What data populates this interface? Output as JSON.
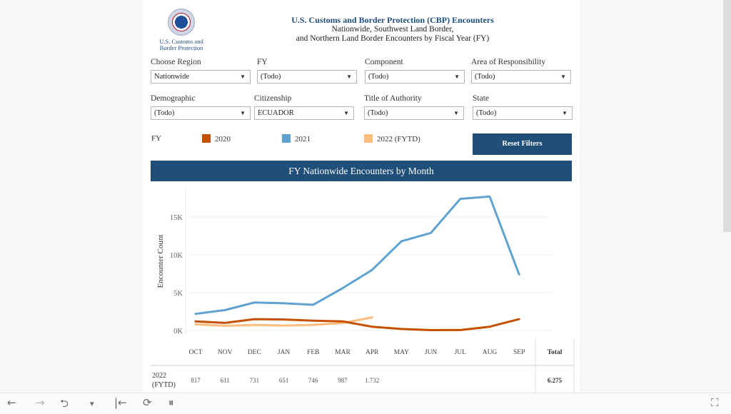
{
  "header": {
    "logo_text_line1": "U.S. Customs and",
    "logo_text_line2": "Border Protection",
    "title": "U.S. Customs and Border Protection (CBP) Encounters",
    "subtitle1": "Nationwide, Southwest Land Border,",
    "subtitle2": "and Northern Land Border Encounters by Fiscal Year (FY)"
  },
  "filters": [
    {
      "label": "Choose Region",
      "value": "Nationwide"
    },
    {
      "label": "FY",
      "value": "(Todo)"
    },
    {
      "label": "Component",
      "value": "(Todo)"
    },
    {
      "label": "Area of Responsibility",
      "value": "(Todo)"
    },
    {
      "label": "Demographic",
      "value": "(Todo)"
    },
    {
      "label": "Citizenship",
      "value": "ECUADOR"
    },
    {
      "label": "Title of Authority",
      "value": "(Todo)"
    },
    {
      "label": "State",
      "value": "(Todo)"
    }
  ],
  "legend": {
    "title": "FY",
    "items": [
      {
        "label": "2020",
        "color": "#c65000"
      },
      {
        "label": "2021",
        "color": "#5fa2d0"
      },
      {
        "label": "2022 (FYTD)",
        "color": "#fdbd7c"
      }
    ]
  },
  "reset_label": "Reset Filters",
  "banner_title": "FY Nationwide Encounters by Month",
  "chart_data": {
    "type": "line",
    "title": "FY Nationwide Encounters by Month",
    "xlabel": "",
    "ylabel": "Encounter Count",
    "categories": [
      "OCT",
      "NOV",
      "DEC",
      "JAN",
      "FEB",
      "MAR",
      "APR",
      "MAY",
      "JUN",
      "JUL",
      "AUG",
      "SEP"
    ],
    "y_ticks": [
      "0K",
      "5K",
      "10K",
      "15K"
    ],
    "ylim": [
      0,
      18500
    ],
    "grid": true,
    "series": [
      {
        "name": "2020",
        "color": "#c65000",
        "values": [
          1200,
          1000,
          1500,
          1450,
          1300,
          1200,
          500,
          200,
          50,
          60,
          500,
          1500
        ]
      },
      {
        "name": "2021",
        "color": "#5fa2d0",
        "values": [
          2200,
          2700,
          3700,
          3600,
          3400,
          5600,
          8000,
          11800,
          12900,
          17400,
          17700,
          7400
        ]
      },
      {
        "name": "2022 (FYTD)",
        "color": "#fdbd7c",
        "values": [
          817,
          611,
          731,
          651,
          746,
          987,
          1732
        ]
      }
    ]
  },
  "table": {
    "total_header": "Total",
    "row_label": "2022 (FYTD)",
    "values": [
      "817",
      "611",
      "731",
      "651",
      "746",
      "987",
      "1.732",
      "",
      "",
      "",
      "",
      ""
    ],
    "total": "6.275"
  },
  "toolbar": {
    "undo": "←",
    "redo": "→",
    "revert": "⮌",
    "dropdown": "▾",
    "first": "|←",
    "refresh": "⟳",
    "pause": "⏸",
    "fullscreen": "⛶"
  }
}
